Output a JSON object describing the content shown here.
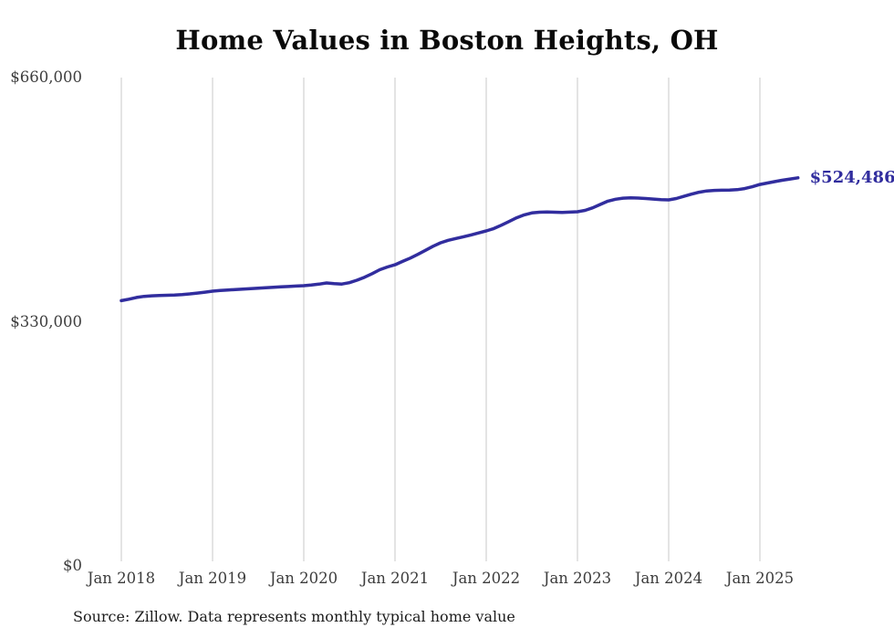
{
  "chart_data": {
    "type": "line",
    "title": "Home Values in Boston Heights, OH",
    "source_note": "Source: Zillow. Data represents monthly typical home value",
    "series_name": "Typical home value (monthly)",
    "end_label": "$524,486",
    "end_value": 524486,
    "line_color": "#312d9e",
    "grid": "vertical-only",
    "legend": "none",
    "ylim": [
      0,
      660000
    ],
    "y_ticks": [
      {
        "label": "$660,000",
        "value": 660000
      },
      {
        "label": "$330,000",
        "value": 330000
      },
      {
        "label": "$0",
        "value": 0
      }
    ],
    "x_tick_labels": [
      "Jan 2018",
      "Jan 2019",
      "Jan 2020",
      "Jan 2021",
      "Jan 2022",
      "Jan 2023",
      "Jan 2024",
      "Jan 2025"
    ],
    "x_monthly_start": "2018-01",
    "x_monthly_end": "2025-06",
    "values": [
      358500,
      360500,
      362800,
      364300,
      365000,
      365400,
      365800,
      366200,
      366800,
      367600,
      368700,
      370000,
      371300,
      372200,
      372900,
      373500,
      374100,
      374700,
      375300,
      375900,
      376500,
      377100,
      377600,
      378200,
      378700,
      379600,
      380800,
      382400,
      381600,
      380900,
      382800,
      386100,
      390200,
      395000,
      400300,
      404000,
      407000,
      411500,
      416000,
      421000,
      426500,
      432000,
      436700,
      440000,
      442500,
      444800,
      447300,
      450000,
      452700,
      456000,
      460500,
      465500,
      470500,
      474500,
      477000,
      478000,
      478300,
      478000,
      477800,
      478100,
      478600,
      480500,
      484000,
      488500,
      493000,
      495500,
      497000,
      497500,
      497200,
      496500,
      495800,
      495100,
      494700,
      496500,
      499500,
      502500,
      505000,
      506800,
      507500,
      507800,
      508000,
      508500,
      510000,
      512500,
      515600,
      517500,
      519500,
      521300,
      523000,
      524486
    ]
  }
}
